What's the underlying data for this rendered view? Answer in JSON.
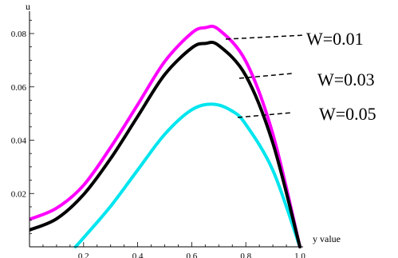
{
  "chart_data": {
    "type": "line",
    "title": "",
    "xlabel": "y value",
    "ylabel": "u",
    "xlim": [
      0,
      1
    ],
    "ylim": [
      0,
      0.085
    ],
    "x_ticks": [
      0.2,
      0.4,
      0.6,
      0.8,
      1.0
    ],
    "x_tick_labels": [
      "0.2",
      "0.4",
      "0.6",
      "0.8",
      "1.0"
    ],
    "y_ticks": [
      0.02,
      0.04,
      0.06,
      0.08
    ],
    "y_tick_labels": [
      "0.02",
      "0.04",
      "0.06",
      "0.08"
    ],
    "grid": false,
    "legend_placement": "right, annotated with dashed leader lines",
    "series": [
      {
        "name": "W=0.01",
        "color": "#ff00ff",
        "x": [
          0.0,
          0.1,
          0.2,
          0.3,
          0.4,
          0.5,
          0.6,
          0.65,
          0.7,
          0.8,
          0.9,
          1.0
        ],
        "y": [
          0.0103,
          0.0145,
          0.0231,
          0.0373,
          0.0533,
          0.0695,
          0.0802,
          0.0822,
          0.0815,
          0.0696,
          0.0423,
          0.0
        ]
      },
      {
        "name": "W=0.03",
        "color": "#000000",
        "x": [
          0.0,
          0.1,
          0.2,
          0.3,
          0.4,
          0.5,
          0.6,
          0.65,
          0.7,
          0.8,
          0.9,
          1.0
        ],
        "y": [
          0.0063,
          0.0105,
          0.0196,
          0.0331,
          0.0489,
          0.0646,
          0.0746,
          0.0763,
          0.0755,
          0.0642,
          0.0389,
          0.0
        ]
      },
      {
        "name": "W=0.05",
        "color": "#00e5ee",
        "x": [
          0.17,
          0.2,
          0.3,
          0.4,
          0.5,
          0.6,
          0.68,
          0.75,
          0.8,
          0.9,
          1.0
        ],
        "y": [
          0.0,
          0.0034,
          0.0152,
          0.0288,
          0.0422,
          0.0514,
          0.0535,
          0.0509,
          0.0459,
          0.0287,
          0.0
        ]
      }
    ]
  }
}
